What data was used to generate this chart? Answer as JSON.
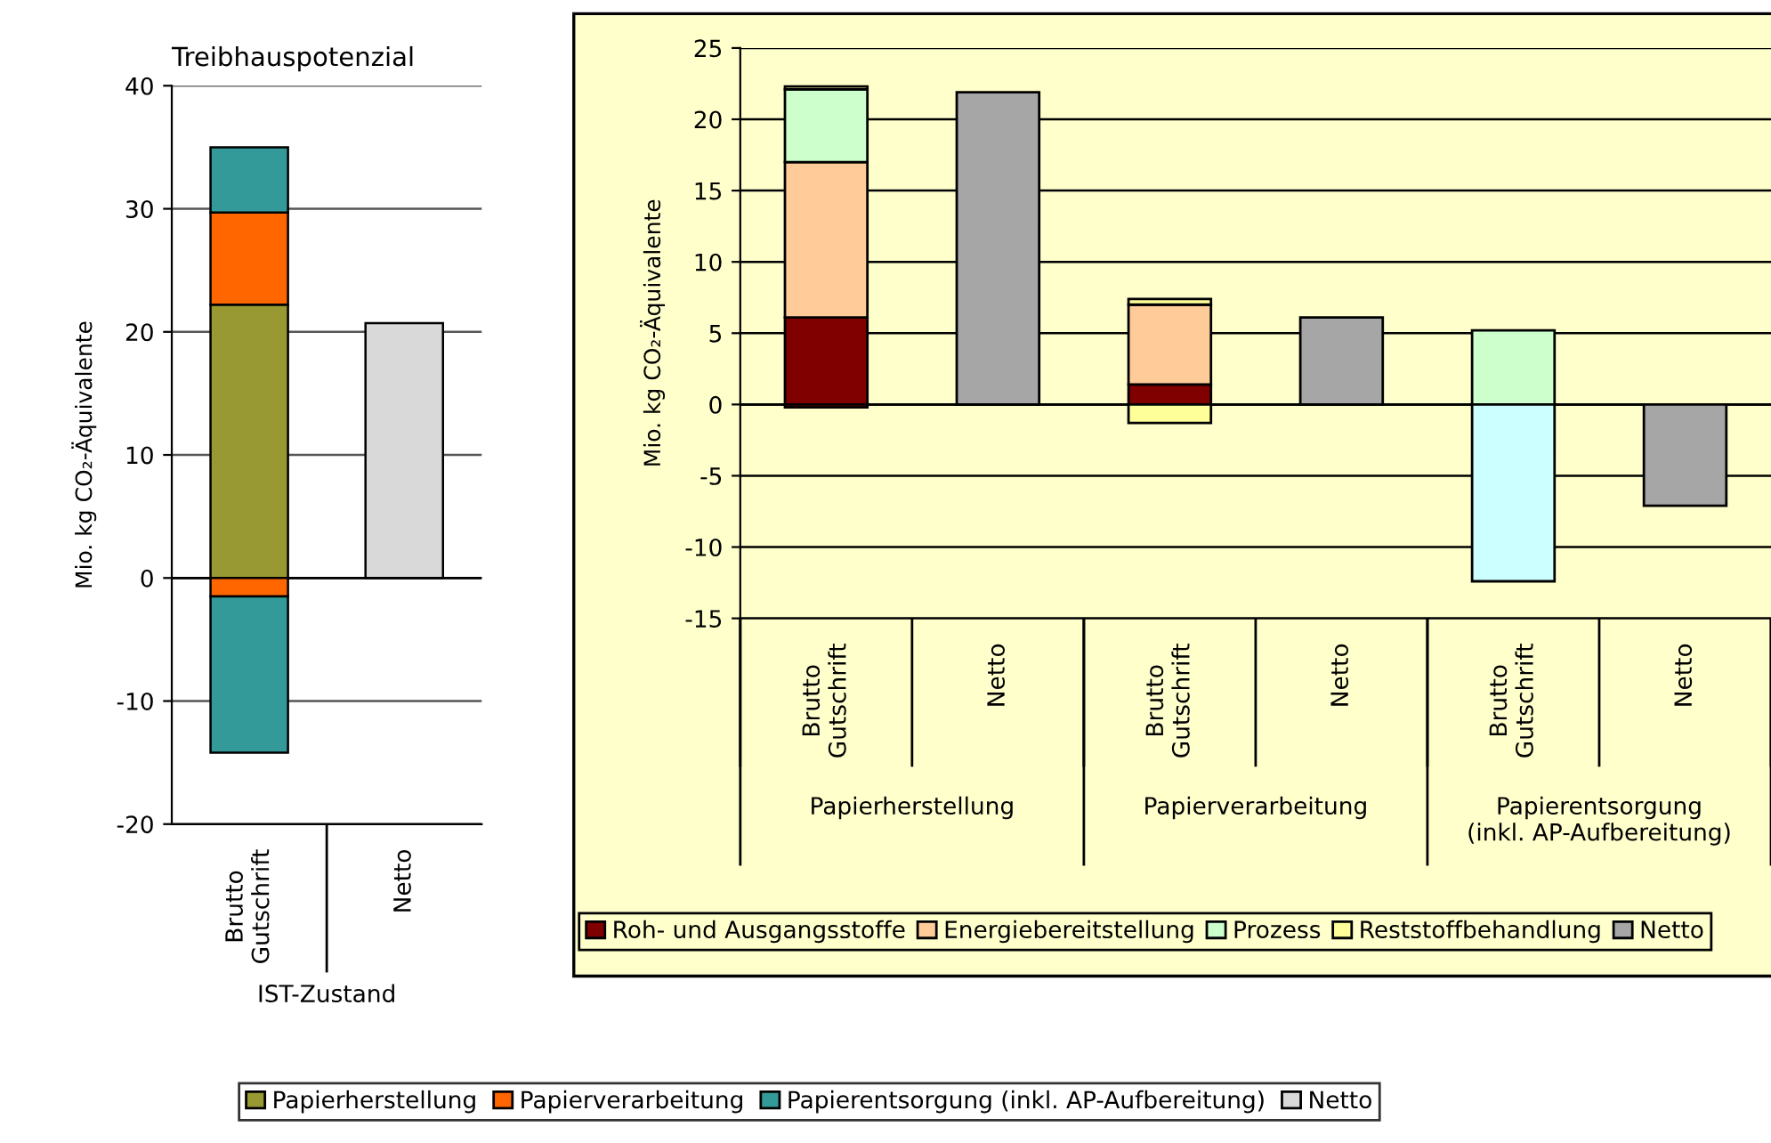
{
  "chart_data": [
    {
      "type": "bar",
      "stacked": true,
      "title": "Treibhauspotenzial",
      "ylabel": "Mio. kg CO₂-Äquivalente",
      "xlabel": "IST-Zustand",
      "categories": [
        "Brutto\nGutschrift",
        "Netto"
      ],
      "series": [
        {
          "name": "Papierherstellung",
          "color": "#999933",
          "values": [
            22.2,
            null
          ]
        },
        {
          "name": "Papierverarbeitung",
          "color": "#ff6600",
          "values": [
            7.5,
            null
          ]
        },
        {
          "name": "Papierentsorgung (inkl. AP-Aufbereitung)",
          "color": "#339999",
          "values": [
            5.3,
            null
          ]
        },
        {
          "name": "Netto",
          "color": "#d9d9d9",
          "values": [
            null,
            20.7
          ]
        },
        {
          "color": "#ff6600",
          "values": [
            -1.5,
            null
          ]
        },
        {
          "color": "#339999",
          "values": [
            -12.7,
            null
          ]
        }
      ],
      "ylim": [
        -20,
        40
      ],
      "yticks": [
        -20,
        -10,
        0,
        10,
        20,
        30,
        40
      ],
      "grid": "y",
      "legend": "bottom"
    },
    {
      "type": "bar",
      "stacked": true,
      "ylabel": "Mio. kg CO₂-Äquivalente",
      "categories": [
        "Brutto\nGutschrift",
        "Netto",
        "Brutto\nGutschrift",
        "Netto",
        "Brutto\nGutschrift",
        "Netto"
      ],
      "annotations": [
        "Papierherstellung",
        "Papierverarbeitung",
        "Papierentsorgung\n(inkl. AP-Aufbereitung)"
      ],
      "series": [
        {
          "name": "Roh- und Ausgangsstoffe",
          "color": "#800000",
          "values": [
            6.1,
            null,
            1.4,
            null,
            null,
            null
          ]
        },
        {
          "name": "Energiebereitstellung",
          "color": "#ffcc99",
          "values": [
            10.9,
            null,
            5.6,
            null,
            null,
            null
          ]
        },
        {
          "name": "Prozess",
          "color": "#ccffcc",
          "values": [
            5.1,
            null,
            null,
            null,
            5.2,
            null
          ]
        },
        {
          "name": "Reststoffbehandlung",
          "color": "#ffff99",
          "values": [
            0.2,
            null,
            0.4,
            null,
            null,
            null
          ]
        },
        {
          "name": "Netto",
          "color": "#a6a6a6",
          "values": [
            null,
            21.9,
            null,
            6.1,
            null,
            -7.1
          ]
        },
        {
          "color": "#800000",
          "values": [
            -0.2,
            null,
            null,
            null,
            null,
            null
          ]
        },
        {
          "color": "#ffff99",
          "values": [
            null,
            null,
            -1.3,
            null,
            null,
            null
          ]
        },
        {
          "color": "#ccffff",
          "values": [
            null,
            null,
            null,
            null,
            -12.4,
            null
          ]
        }
      ],
      "ylim": [
        -15,
        25
      ],
      "yticks": [
        -15,
        -10,
        -5,
        0,
        5,
        10,
        15,
        20,
        25
      ],
      "grid": "y",
      "legend": "bottom"
    }
  ]
}
